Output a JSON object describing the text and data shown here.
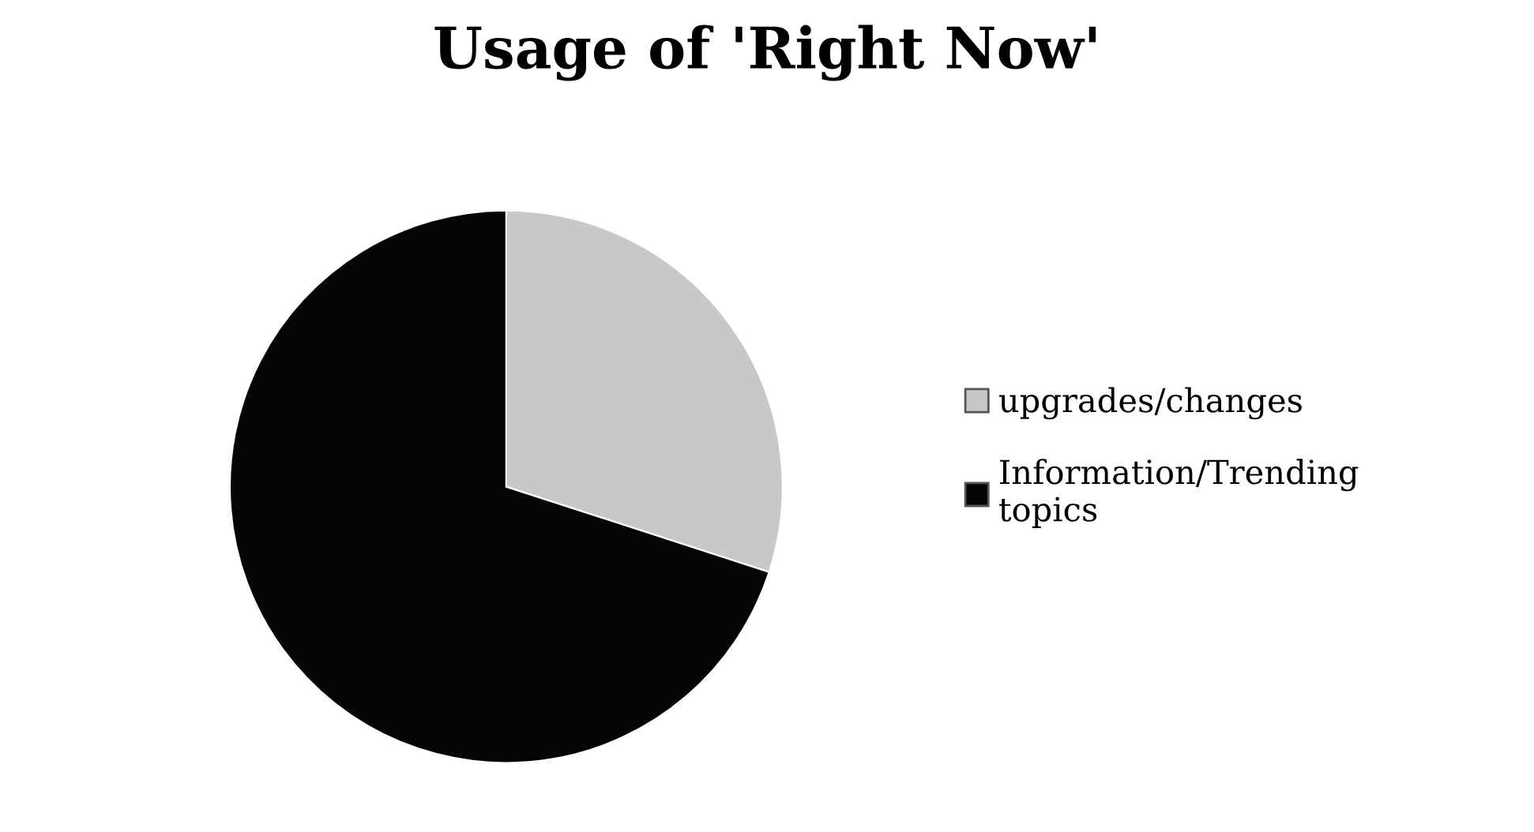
{
  "chart_data": {
    "type": "pie",
    "title": "Usage of 'Right Now'",
    "categories": [
      "upgrades/changes",
      "Information/Trending\ntopics"
    ],
    "values": [
      30,
      70
    ],
    "colors": [
      "#c8c8c8",
      "#050505"
    ],
    "legend": "right"
  }
}
